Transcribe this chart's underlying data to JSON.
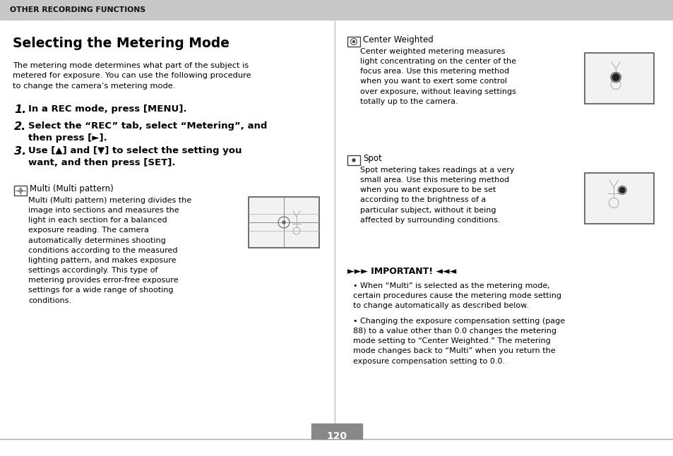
{
  "page_bg": "#ffffff",
  "header_bg": "#c8c8c8",
  "header_text": "OTHER RECORDING FUNCTIONS",
  "title": "Selecting the Metering Mode",
  "intro": "The metering mode determines what part of the subject is\nmetered for exposure. You can use the following procedure\nto change the camera’s metering mode.",
  "step1_num": "1.",
  "step1_text": "In a REC mode, press [MENU].",
  "step2_num": "2.",
  "step2_text": "Select the “REC” tab, select “Metering”, and\nthen press [►].",
  "step3_num": "3.",
  "step3_text": "Use [▲] and [▼] to select the setting you\nwant, and then press [SET].",
  "mode1_label": "Multi (Multi pattern)",
  "mode1_text": "Multi (Multi pattern) metering divides the\nimage into sections and measures the\nlight in each section for a balanced\nexposure reading. The camera\nautomatically determines shooting\nconditions according to the measured\nlighting pattern, and makes exposure\nsettings accordingly. This type of\nmetering provides error-free exposure\nsettings for a wide range of shooting\nconditions.",
  "mode2_label": "Center Weighted",
  "mode2_text": "Center weighted metering measures\nlight concentrating on the center of the\nfocus area. Use this metering method\nwhen you want to exert some control\nover exposure, without leaving settings\ntotally up to the camera.",
  "mode3_label": "Spot",
  "mode3_text": "Spot metering takes readings at a very\nsmall area. Use this metering method\nwhen you want exposure to be set\naccording to the brightness of a\nparticular subject, without it being\naffected by surrounding conditions.",
  "important_title": "►►► IMPORTANT! ◄◄◄",
  "important_b1": "When “Multi” is selected as the metering mode,\ncertain procedures cause the metering mode setting\nto change automatically as described below.",
  "important_b2": "Changing the exposure compensation setting (page\n88) to a value other than 0.0 changes the metering\nmode setting to “Center Weighted.” The metering\nmode changes back to “Multi” when you return the\nexposure compensation setting to 0.0.",
  "page_number": "120",
  "text_color": "#000000"
}
